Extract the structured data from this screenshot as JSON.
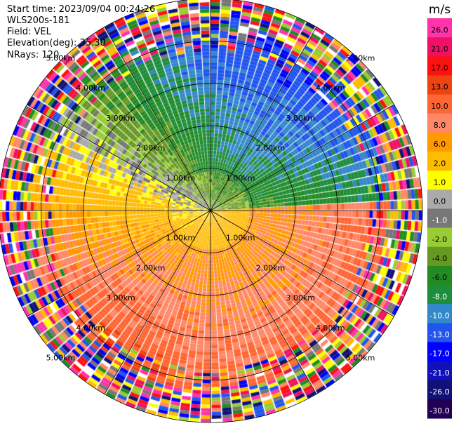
{
  "header": {
    "start_time": "Start time: 2023/09/04 00:24:26",
    "instrument": "WLS200s-181",
    "field": "Field: VEL",
    "elevation": "Elevation(deg): 35.30",
    "nrays": "NRays: 120"
  },
  "chart_data": {
    "type": "heatmap",
    "projection": "polar-ppi",
    "field": "VEL",
    "units": "m/s",
    "nrays": 120,
    "range_max_km": 5.0,
    "range_rings_km": [
      1,
      2,
      3,
      4,
      5
    ],
    "range_labels": [
      "1.00km",
      "2.00km",
      "3.00km",
      "4.00km",
      "5.00km"
    ],
    "azimuth_lines_deg": [
      0,
      30,
      60,
      90,
      120,
      150,
      180,
      210,
      240,
      270,
      300,
      330
    ],
    "colorbar": {
      "label": "m/s",
      "ticks": [
        "26.0",
        "21.0",
        "17.0",
        "13.0",
        "10.0",
        "8.0",
        "6.0",
        "2.0",
        "1.0",
        "0.0",
        "-1.0",
        "-2.0",
        "-4.0",
        "-6.0",
        "-8.0",
        "-10.0",
        "-13.0",
        "-17.0",
        "-21.0",
        "-26.0",
        "-30.0"
      ],
      "colors": [
        "#ff33aa",
        "#ee1166",
        "#ff1111",
        "#ee4411",
        "#ff6633",
        "#ff8866",
        "#ff9900",
        "#ffbb00",
        "#ffff00",
        "#aaaaaa",
        "#777777",
        "#99cc33",
        "#669922",
        "#228b22",
        "#1e8e3e",
        "#3388cc",
        "#2255ee",
        "#0000ff",
        "#1111bb",
        "#111177",
        "#220055"
      ]
    }
  }
}
